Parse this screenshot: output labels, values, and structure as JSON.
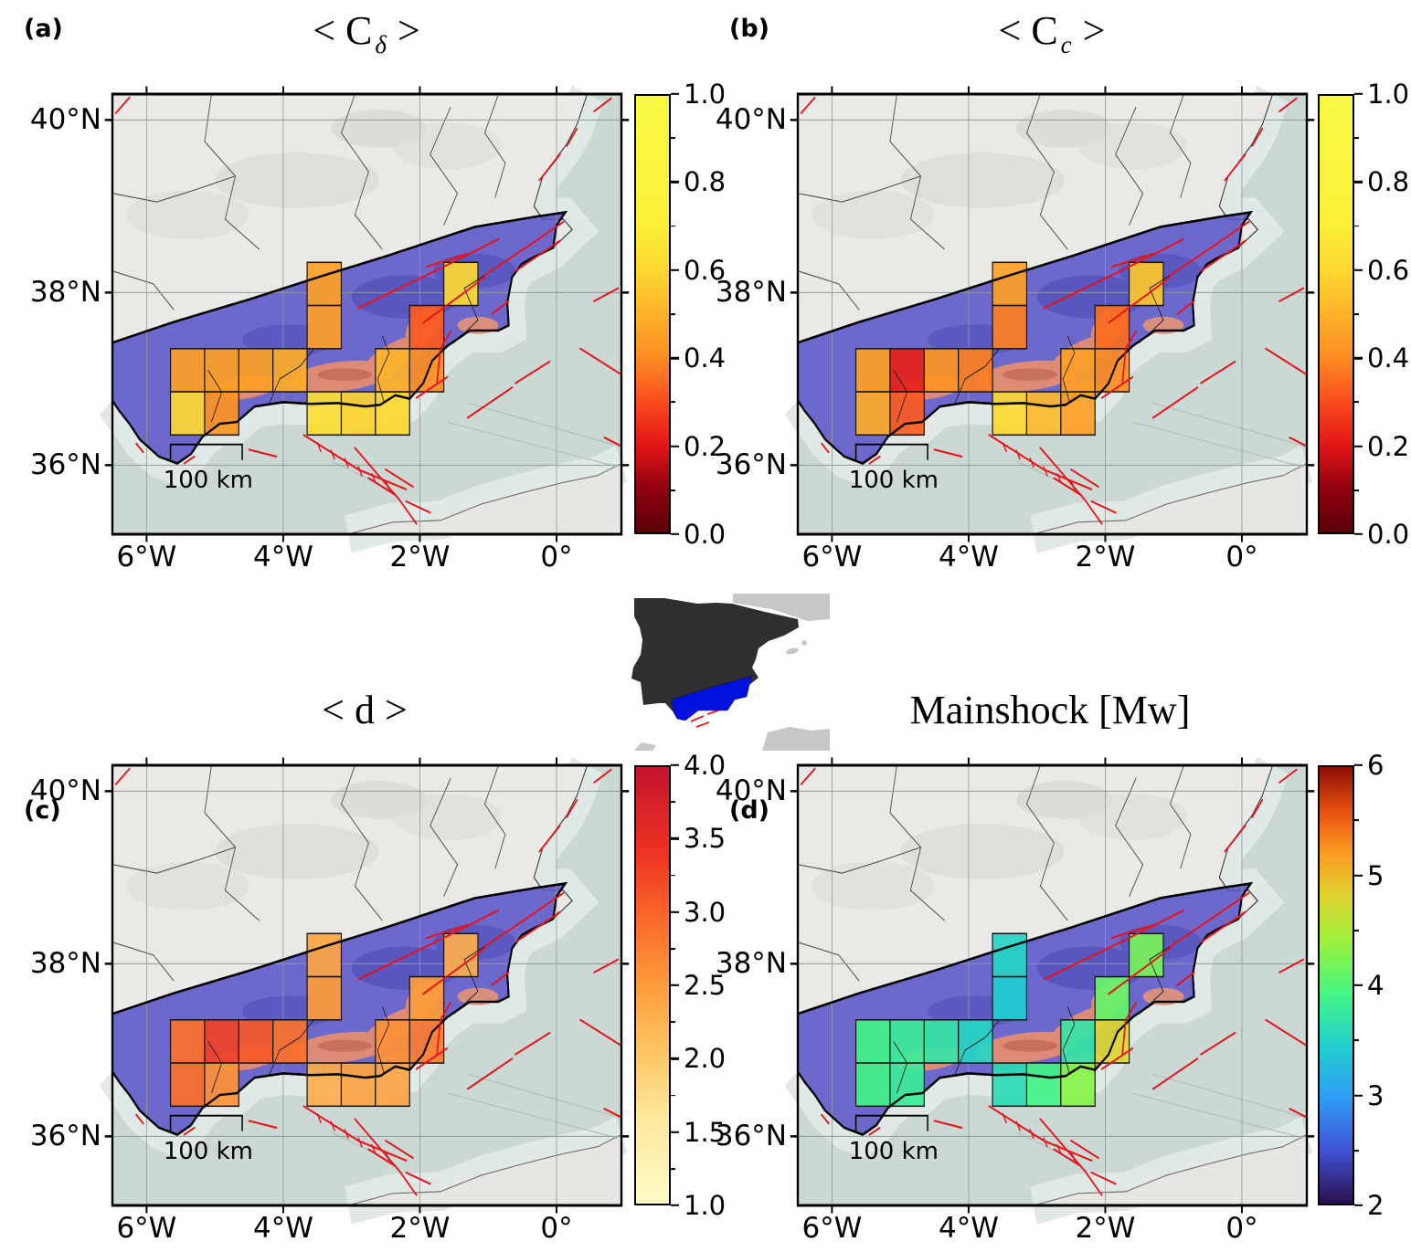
{
  "map_extent": {
    "lon_min": -6.5,
    "lon_max": 0.95,
    "lat_min": 35.2,
    "lat_max": 40.3
  },
  "axes": {
    "x_ticks": [
      {
        "label": "6°W",
        "lon": -6
      },
      {
        "label": "4°W",
        "lon": -4
      },
      {
        "label": "2°W",
        "lon": -2
      },
      {
        "label": "0°",
        "lon": 0
      }
    ],
    "y_ticks": [
      {
        "label": "40°N",
        "lat": 40
      },
      {
        "label": "38°N",
        "lat": 38
      },
      {
        "label": "36°N",
        "lat": 36
      }
    ]
  },
  "scalebar": {
    "label": "100 km"
  },
  "colors": {
    "sea": "#cbd8d4",
    "land": "#eae9e5",
    "study_region": "#5a55c8",
    "mountain": "#dd8a77",
    "fault": "#e8121a",
    "inset_spain": "#2f2f2f",
    "inset_region": "#0010dd"
  },
  "colormaps": {
    "correlation": {
      "domain": [
        0,
        1
      ],
      "stops": [
        [
          0,
          "#5a0006"
        ],
        [
          0.1,
          "#8f0010"
        ],
        [
          0.2,
          "#e31616"
        ],
        [
          0.3,
          "#fb4d1e"
        ],
        [
          0.4,
          "#fd8c22"
        ],
        [
          0.5,
          "#fdb32a"
        ],
        [
          0.6,
          "#fdd831"
        ],
        [
          0.7,
          "#fcef37"
        ],
        [
          1,
          "#f8fa45"
        ]
      ]
    },
    "distance": {
      "domain": [
        1,
        4
      ],
      "stops": [
        [
          0,
          "#fffbc8"
        ],
        [
          0.2,
          "#fee79b"
        ],
        [
          0.35,
          "#fec561"
        ],
        [
          0.5,
          "#fd9c3c"
        ],
        [
          0.65,
          "#fb6a2a"
        ],
        [
          0.8,
          "#ee3423"
        ],
        [
          1,
          "#c3132e"
        ]
      ]
    },
    "magnitude": {
      "domain": [
        2,
        6
      ],
      "stops": [
        [
          0,
          "#2a0f4e"
        ],
        [
          0.12,
          "#4152d3"
        ],
        [
          0.24,
          "#2f9bf5"
        ],
        [
          0.36,
          "#21d0cf"
        ],
        [
          0.48,
          "#45f585"
        ],
        [
          0.6,
          "#9bf23c"
        ],
        [
          0.7,
          "#dcd531"
        ],
        [
          0.8,
          "#fb9e22"
        ],
        [
          0.9,
          "#e74f11"
        ],
        [
          1,
          "#8c0e04"
        ]
      ]
    }
  },
  "panels": {
    "a": {
      "letter": "(a)",
      "title_pre": "< C",
      "title_sub": "δ",
      "title_post": " >",
      "cmap": "correlation",
      "cbar_ticks": [
        {
          "label": "0.0",
          "value": 0.0
        },
        {
          "label": "0.2",
          "value": 0.2
        },
        {
          "label": "0.4",
          "value": 0.4
        },
        {
          "label": "0.6",
          "value": 0.6
        },
        {
          "label": "0.8",
          "value": 0.8
        },
        {
          "label": "1.0",
          "value": 1.0
        }
      ]
    },
    "b": {
      "letter": "(b)",
      "title_pre": "< C",
      "title_sub": "c",
      "title_post": " >",
      "cmap": "correlation",
      "cbar_ticks": [
        {
          "label": "0.0",
          "value": 0.0
        },
        {
          "label": "0.2",
          "value": 0.2
        },
        {
          "label": "0.4",
          "value": 0.4
        },
        {
          "label": "0.6",
          "value": 0.6
        },
        {
          "label": "0.8",
          "value": 0.8
        },
        {
          "label": "1.0",
          "value": 1.0
        }
      ]
    },
    "c": {
      "letter": "(c)",
      "title_pre": "< d >",
      "title_sub": "",
      "title_post": "",
      "cmap": "distance",
      "cbar_ticks": [
        {
          "label": "1.0",
          "value": 1.0
        },
        {
          "label": "1.5",
          "value": 1.5
        },
        {
          "label": "2.0",
          "value": 2.0
        },
        {
          "label": "2.5",
          "value": 2.5
        },
        {
          "label": "3.0",
          "value": 3.0
        },
        {
          "label": "3.5",
          "value": 3.5
        },
        {
          "label": "4.0",
          "value": 4.0
        }
      ]
    },
    "d": {
      "letter": "(d)",
      "title_pre": "Mainshock [Mw]",
      "title_sub": "",
      "title_post": "",
      "cmap": "magnitude",
      "cbar_ticks": [
        {
          "label": "2",
          "value": 2
        },
        {
          "label": "3",
          "value": 3
        },
        {
          "label": "4",
          "value": 4
        },
        {
          "label": "5",
          "value": 5
        },
        {
          "label": "6",
          "value": 6
        }
      ]
    }
  },
  "chart_data": {
    "type": "heatmap",
    "description": "0.5° x 0.5° grid cells over the Betics study region (SE Spain); one value per cell per panel",
    "cell_size_deg": 0.5,
    "cell_positions_lon_lat": [
      [
        -3.65,
        37.85
      ],
      [
        -3.65,
        37.35
      ],
      [
        -1.65,
        37.85
      ],
      [
        -5.65,
        36.85
      ],
      [
        -5.15,
        36.85
      ],
      [
        -4.65,
        36.85
      ],
      [
        -4.15,
        36.85
      ],
      [
        -5.65,
        36.35
      ],
      [
        -5.15,
        36.35
      ],
      [
        -3.65,
        36.35
      ],
      [
        -3.15,
        36.35
      ],
      [
        -2.65,
        36.35
      ],
      [
        -2.65,
        36.85
      ],
      [
        -2.15,
        36.85
      ],
      [
        -2.15,
        37.35
      ]
    ],
    "values": {
      "a": [
        0.45,
        0.45,
        0.6,
        0.45,
        0.45,
        0.45,
        0.48,
        0.6,
        0.42,
        0.62,
        0.58,
        0.6,
        0.5,
        0.4,
        0.32
      ],
      "b": [
        0.45,
        0.38,
        0.55,
        0.45,
        0.22,
        0.42,
        0.38,
        0.48,
        0.32,
        0.6,
        0.52,
        0.45,
        0.45,
        0.4,
        0.35
      ],
      "c": [
        2.4,
        2.5,
        2.3,
        2.9,
        3.3,
        3.1,
        2.9,
        2.9,
        2.6,
        2.3,
        2.4,
        2.4,
        2.6,
        2.8,
        2.5
      ],
      "d": [
        3.5,
        3.4,
        4.2,
        3.9,
        3.8,
        3.7,
        3.5,
        3.9,
        3.8,
        3.6,
        3.9,
        4.3,
        3.7,
        4.8,
        4.1
      ]
    }
  }
}
